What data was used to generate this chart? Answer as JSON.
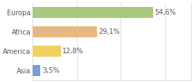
{
  "categories": [
    "Europa",
    "Africa",
    "America",
    "Asia"
  ],
  "values": [
    54.6,
    29.1,
    12.8,
    3.5
  ],
  "labels": [
    "54,6%",
    "29,1%",
    "12,8%",
    "3,5%"
  ],
  "bar_colors": [
    "#a8c97f",
    "#e8b882",
    "#f0d060",
    "#7b9fd4"
  ],
  "background_color": "#ffffff",
  "grid_color": "#dddddd",
  "xlim": [
    0,
    72
  ],
  "bar_height": 0.55,
  "label_fontsize": 7,
  "category_fontsize": 7,
  "label_color": "#555555",
  "xticks": [
    0,
    20,
    40,
    60
  ]
}
